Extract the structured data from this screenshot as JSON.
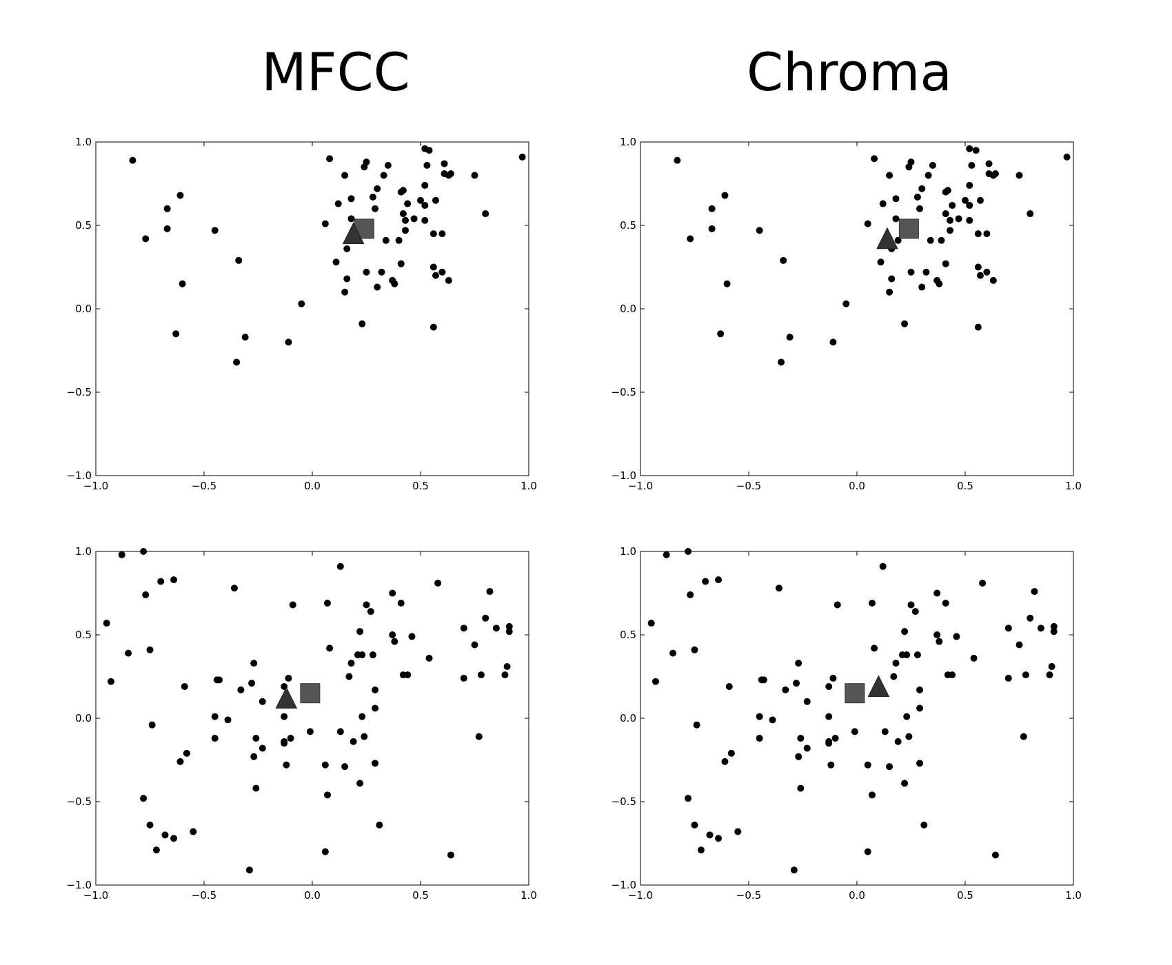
{
  "titles": {
    "left": "MFCC",
    "right": "Chroma"
  },
  "colors": {
    "point": "#000000",
    "square": "#555555",
    "triangle": "#333333"
  },
  "chart_data": [
    {
      "type": "scatter",
      "title": "MFCC",
      "xlim": [
        -1,
        1
      ],
      "ylim": [
        -1,
        1
      ],
      "xticks": [
        "−1.0",
        "−0.5",
        "0.0",
        "0.5",
        "1.0"
      ],
      "yticks": [
        "−1.0",
        "−0.5",
        "0.0",
        "0.5",
        "1.0"
      ],
      "grid": false,
      "points": [
        [
          -0.83,
          0.89
        ],
        [
          -0.77,
          0.42
        ],
        [
          -0.67,
          0.6
        ],
        [
          -0.67,
          0.48
        ],
        [
          -0.61,
          0.68
        ],
        [
          -0.6,
          0.15
        ],
        [
          -0.63,
          -0.15
        ],
        [
          -0.45,
          0.47
        ],
        [
          -0.34,
          0.29
        ],
        [
          -0.35,
          -0.32
        ],
        [
          -0.31,
          -0.17
        ],
        [
          -0.11,
          -0.2
        ],
        [
          -0.05,
          0.03
        ],
        [
          0.06,
          0.51
        ],
        [
          0.08,
          0.9
        ],
        [
          0.11,
          0.28
        ],
        [
          0.12,
          0.63
        ],
        [
          0.15,
          0.8
        ],
        [
          0.16,
          0.36
        ],
        [
          0.16,
          0.18
        ],
        [
          0.15,
          0.1
        ],
        [
          0.18,
          0.66
        ],
        [
          0.18,
          0.54
        ],
        [
          0.23,
          -0.09
        ],
        [
          0.24,
          0.85
        ],
        [
          0.25,
          0.88
        ],
        [
          0.25,
          0.22
        ],
        [
          0.28,
          0.67
        ],
        [
          0.29,
          0.6
        ],
        [
          0.3,
          0.72
        ],
        [
          0.3,
          0.13
        ],
        [
          0.32,
          0.22
        ],
        [
          0.33,
          0.8
        ],
        [
          0.34,
          0.41
        ],
        [
          0.35,
          0.86
        ],
        [
          0.37,
          0.17
        ],
        [
          0.38,
          0.15
        ],
        [
          0.4,
          0.41
        ],
        [
          0.41,
          0.7
        ],
        [
          0.42,
          0.57
        ],
        [
          0.41,
          0.27
        ],
        [
          0.42,
          0.71
        ],
        [
          0.43,
          0.47
        ],
        [
          0.43,
          0.53
        ],
        [
          0.44,
          0.63
        ],
        [
          0.47,
          0.54
        ],
        [
          0.5,
          0.65
        ],
        [
          0.52,
          0.96
        ],
        [
          0.52,
          0.74
        ],
        [
          0.53,
          0.86
        ],
        [
          0.52,
          0.62
        ],
        [
          0.52,
          0.53
        ],
        [
          0.54,
          0.95
        ],
        [
          0.56,
          0.45
        ],
        [
          0.56,
          -0.11
        ],
        [
          0.56,
          0.25
        ],
        [
          0.57,
          0.65
        ],
        [
          0.57,
          0.2
        ],
        [
          0.6,
          0.22
        ],
        [
          0.6,
          0.45
        ],
        [
          0.61,
          0.81
        ],
        [
          0.61,
          0.87
        ],
        [
          0.63,
          0.17
        ],
        [
          0.63,
          0.8
        ],
        [
          0.64,
          0.81
        ],
        [
          0.75,
          0.8
        ],
        [
          0.8,
          0.57
        ],
        [
          0.97,
          0.91
        ]
      ],
      "square": [
        0.24,
        0.48
      ],
      "triangle": [
        0.19,
        0.44
      ]
    },
    {
      "type": "scatter",
      "title": "Chroma",
      "xlim": [
        -1,
        1
      ],
      "ylim": [
        -1,
        1
      ],
      "xticks": [
        "−1.0",
        "−0.5",
        "0.0",
        "0.5",
        "1.0"
      ],
      "yticks": [
        "−1.0",
        "−0.5",
        "0.0",
        "0.5",
        "1.0"
      ],
      "grid": false,
      "points": [
        [
          -0.83,
          0.89
        ],
        [
          -0.77,
          0.42
        ],
        [
          -0.67,
          0.6
        ],
        [
          -0.67,
          0.48
        ],
        [
          -0.61,
          0.68
        ],
        [
          -0.6,
          0.15
        ],
        [
          -0.63,
          -0.15
        ],
        [
          -0.45,
          0.47
        ],
        [
          -0.34,
          0.29
        ],
        [
          -0.35,
          -0.32
        ],
        [
          -0.31,
          -0.17
        ],
        [
          -0.11,
          -0.2
        ],
        [
          -0.05,
          0.03
        ],
        [
          0.05,
          0.51
        ],
        [
          0.08,
          0.9
        ],
        [
          0.11,
          0.28
        ],
        [
          0.12,
          0.63
        ],
        [
          0.15,
          0.8
        ],
        [
          0.16,
          0.36
        ],
        [
          0.16,
          0.18
        ],
        [
          0.15,
          0.1
        ],
        [
          0.18,
          0.66
        ],
        [
          0.18,
          0.54
        ],
        [
          0.19,
          0.41
        ],
        [
          0.22,
          -0.09
        ],
        [
          0.24,
          0.85
        ],
        [
          0.25,
          0.88
        ],
        [
          0.25,
          0.22
        ],
        [
          0.28,
          0.67
        ],
        [
          0.29,
          0.6
        ],
        [
          0.3,
          0.72
        ],
        [
          0.3,
          0.13
        ],
        [
          0.32,
          0.22
        ],
        [
          0.33,
          0.8
        ],
        [
          0.34,
          0.41
        ],
        [
          0.35,
          0.86
        ],
        [
          0.37,
          0.17
        ],
        [
          0.38,
          0.15
        ],
        [
          0.39,
          0.41
        ],
        [
          0.41,
          0.7
        ],
        [
          0.41,
          0.57
        ],
        [
          0.41,
          0.27
        ],
        [
          0.42,
          0.71
        ],
        [
          0.43,
          0.47
        ],
        [
          0.43,
          0.53
        ],
        [
          0.44,
          0.62
        ],
        [
          0.47,
          0.54
        ],
        [
          0.5,
          0.65
        ],
        [
          0.52,
          0.96
        ],
        [
          0.52,
          0.74
        ],
        [
          0.53,
          0.86
        ],
        [
          0.52,
          0.62
        ],
        [
          0.52,
          0.53
        ],
        [
          0.55,
          0.95
        ],
        [
          0.56,
          0.45
        ],
        [
          0.56,
          -0.11
        ],
        [
          0.56,
          0.25
        ],
        [
          0.57,
          0.65
        ],
        [
          0.57,
          0.2
        ],
        [
          0.6,
          0.22
        ],
        [
          0.6,
          0.45
        ],
        [
          0.61,
          0.81
        ],
        [
          0.61,
          0.87
        ],
        [
          0.63,
          0.17
        ],
        [
          0.63,
          0.8
        ],
        [
          0.64,
          0.81
        ],
        [
          0.75,
          0.8
        ],
        [
          0.8,
          0.57
        ],
        [
          0.97,
          0.91
        ]
      ],
      "square": [
        0.24,
        0.48
      ],
      "triangle": [
        0.14,
        0.41
      ]
    },
    {
      "type": "scatter",
      "title": "",
      "xlim": [
        -1,
        1
      ],
      "ylim": [
        -1,
        1
      ],
      "xticks": [
        "−1.0",
        "−0.5",
        "0.0",
        "0.5",
        "1.0"
      ],
      "yticks": [
        "−1.0",
        "−0.5",
        "0.0",
        "0.5",
        "1.0"
      ],
      "grid": false,
      "points": [
        [
          -0.95,
          0.57
        ],
        [
          -0.93,
          0.22
        ],
        [
          -0.88,
          0.98
        ],
        [
          -0.85,
          0.39
        ],
        [
          -0.78,
          1.0
        ],
        [
          -0.77,
          0.74
        ],
        [
          -0.75,
          0.41
        ],
        [
          -0.74,
          -0.04
        ],
        [
          -0.7,
          0.82
        ],
        [
          -0.64,
          0.83
        ],
        [
          -0.78,
          -0.48
        ],
        [
          -0.75,
          -0.64
        ],
        [
          -0.72,
          -0.79
        ],
        [
          -0.68,
          -0.7
        ],
        [
          -0.64,
          -0.72
        ],
        [
          -0.61,
          -0.26
        ],
        [
          -0.59,
          0.19
        ],
        [
          -0.58,
          -0.21
        ],
        [
          -0.55,
          -0.68
        ],
        [
          -0.45,
          0.01
        ],
        [
          -0.45,
          -0.12
        ],
        [
          -0.44,
          0.23
        ],
        [
          -0.43,
          0.23
        ],
        [
          -0.39,
          -0.01
        ],
        [
          -0.36,
          0.78
        ],
        [
          -0.33,
          0.17
        ],
        [
          -0.29,
          -0.91
        ],
        [
          -0.28,
          0.21
        ],
        [
          -0.27,
          0.33
        ],
        [
          -0.27,
          -0.23
        ],
        [
          -0.26,
          -0.12
        ],
        [
          -0.26,
          -0.42
        ],
        [
          -0.23,
          0.1
        ],
        [
          -0.23,
          -0.18
        ],
        [
          -0.13,
          0.19
        ],
        [
          -0.13,
          0.01
        ],
        [
          -0.13,
          -0.14
        ],
        [
          -0.13,
          -0.15
        ],
        [
          -0.12,
          -0.28
        ],
        [
          -0.11,
          0.24
        ],
        [
          -0.1,
          -0.12
        ],
        [
          -0.09,
          0.68
        ],
        [
          -0.01,
          -0.08
        ],
        [
          0.06,
          -0.8
        ],
        [
          0.06,
          -0.28
        ],
        [
          0.07,
          0.69
        ],
        [
          0.07,
          -0.46
        ],
        [
          0.08,
          0.42
        ],
        [
          0.13,
          0.91
        ],
        [
          0.13,
          -0.08
        ],
        [
          0.15,
          -0.29
        ],
        [
          0.17,
          0.25
        ],
        [
          0.18,
          0.33
        ],
        [
          0.19,
          -0.14
        ],
        [
          0.21,
          0.38
        ],
        [
          0.22,
          -0.39
        ],
        [
          0.22,
          0.52
        ],
        [
          0.23,
          0.01
        ],
        [
          0.23,
          0.38
        ],
        [
          0.24,
          -0.11
        ],
        [
          0.25,
          0.68
        ],
        [
          0.27,
          0.64
        ],
        [
          0.28,
          0.38
        ],
        [
          0.29,
          0.17
        ],
        [
          0.29,
          0.06
        ],
        [
          0.29,
          -0.27
        ],
        [
          0.31,
          -0.64
        ],
        [
          0.37,
          0.75
        ],
        [
          0.37,
          0.5
        ],
        [
          0.38,
          0.46
        ],
        [
          0.41,
          0.69
        ],
        [
          0.42,
          0.26
        ],
        [
          0.44,
          0.26
        ],
        [
          0.46,
          0.49
        ],
        [
          0.54,
          0.36
        ],
        [
          0.58,
          0.81
        ],
        [
          0.64,
          -0.82
        ],
        [
          0.7,
          0.54
        ],
        [
          0.7,
          0.24
        ],
        [
          0.75,
          0.44
        ],
        [
          0.77,
          -0.11
        ],
        [
          0.78,
          0.26
        ],
        [
          0.8,
          0.6
        ],
        [
          0.82,
          0.76
        ],
        [
          0.85,
          0.54
        ],
        [
          0.89,
          0.26
        ],
        [
          0.9,
          0.31
        ],
        [
          0.91,
          0.55
        ],
        [
          0.91,
          0.52
        ]
      ],
      "square": [
        -0.01,
        0.15
      ],
      "triangle": [
        -0.12,
        0.11
      ]
    },
    {
      "type": "scatter",
      "title": "",
      "xlim": [
        -1,
        1
      ],
      "ylim": [
        -1,
        1
      ],
      "xticks": [
        "−1.0",
        "−0.5",
        "0.0",
        "0.5",
        "1.0"
      ],
      "yticks": [
        "−1.0",
        "−0.5",
        "0.0",
        "0.5",
        "1.0"
      ],
      "grid": false,
      "points": [
        [
          -0.95,
          0.57
        ],
        [
          -0.93,
          0.22
        ],
        [
          -0.88,
          0.98
        ],
        [
          -0.85,
          0.39
        ],
        [
          -0.78,
          1.0
        ],
        [
          -0.77,
          0.74
        ],
        [
          -0.75,
          0.41
        ],
        [
          -0.74,
          -0.04
        ],
        [
          -0.7,
          0.82
        ],
        [
          -0.64,
          0.83
        ],
        [
          -0.78,
          -0.48
        ],
        [
          -0.75,
          -0.64
        ],
        [
          -0.72,
          -0.79
        ],
        [
          -0.68,
          -0.7
        ],
        [
          -0.64,
          -0.72
        ],
        [
          -0.61,
          -0.26
        ],
        [
          -0.59,
          0.19
        ],
        [
          -0.58,
          -0.21
        ],
        [
          -0.55,
          -0.68
        ],
        [
          -0.45,
          0.01
        ],
        [
          -0.45,
          -0.12
        ],
        [
          -0.44,
          0.23
        ],
        [
          -0.43,
          0.23
        ],
        [
          -0.39,
          -0.01
        ],
        [
          -0.36,
          0.78
        ],
        [
          -0.33,
          0.17
        ],
        [
          -0.29,
          -0.91
        ],
        [
          -0.28,
          0.21
        ],
        [
          -0.27,
          0.33
        ],
        [
          -0.27,
          -0.23
        ],
        [
          -0.26,
          -0.12
        ],
        [
          -0.26,
          -0.42
        ],
        [
          -0.23,
          0.1
        ],
        [
          -0.23,
          -0.18
        ],
        [
          -0.13,
          0.19
        ],
        [
          -0.13,
          0.01
        ],
        [
          -0.13,
          -0.14
        ],
        [
          -0.13,
          -0.15
        ],
        [
          -0.12,
          -0.28
        ],
        [
          -0.11,
          0.24
        ],
        [
          -0.1,
          -0.12
        ],
        [
          -0.09,
          0.68
        ],
        [
          -0.01,
          -0.08
        ],
        [
          0.05,
          -0.8
        ],
        [
          0.05,
          -0.28
        ],
        [
          0.07,
          0.69
        ],
        [
          0.07,
          -0.46
        ],
        [
          0.08,
          0.42
        ],
        [
          0.12,
          0.91
        ],
        [
          0.13,
          -0.08
        ],
        [
          0.15,
          -0.29
        ],
        [
          0.17,
          0.25
        ],
        [
          0.18,
          0.33
        ],
        [
          0.19,
          -0.14
        ],
        [
          0.21,
          0.38
        ],
        [
          0.22,
          -0.39
        ],
        [
          0.22,
          0.52
        ],
        [
          0.23,
          0.01
        ],
        [
          0.23,
          0.38
        ],
        [
          0.24,
          -0.11
        ],
        [
          0.25,
          0.68
        ],
        [
          0.27,
          0.64
        ],
        [
          0.28,
          0.38
        ],
        [
          0.29,
          0.17
        ],
        [
          0.29,
          0.06
        ],
        [
          0.29,
          -0.27
        ],
        [
          0.31,
          -0.64
        ],
        [
          0.37,
          0.75
        ],
        [
          0.37,
          0.5
        ],
        [
          0.38,
          0.46
        ],
        [
          0.41,
          0.69
        ],
        [
          0.42,
          0.26
        ],
        [
          0.44,
          0.26
        ],
        [
          0.46,
          0.49
        ],
        [
          0.54,
          0.36
        ],
        [
          0.58,
          0.81
        ],
        [
          0.64,
          -0.82
        ],
        [
          0.7,
          0.54
        ],
        [
          0.7,
          0.24
        ],
        [
          0.75,
          0.44
        ],
        [
          0.77,
          -0.11
        ],
        [
          0.78,
          0.26
        ],
        [
          0.8,
          0.6
        ],
        [
          0.82,
          0.76
        ],
        [
          0.85,
          0.54
        ],
        [
          0.89,
          0.26
        ],
        [
          0.9,
          0.31
        ],
        [
          0.91,
          0.55
        ],
        [
          0.91,
          0.52
        ]
      ],
      "square": [
        -0.01,
        0.15
      ],
      "triangle": [
        0.1,
        0.18
      ]
    }
  ]
}
